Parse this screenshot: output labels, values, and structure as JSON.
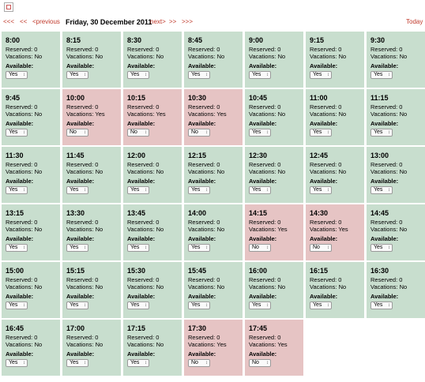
{
  "nav": {
    "first": "<<<",
    "prev_short": "<<",
    "previous": "<previous",
    "date": "Friday, 30 December 2011",
    "next": "next>",
    "next_short": ">>",
    "last": ">>>",
    "today": "Today"
  },
  "labels": {
    "reserved_prefix": "Reserved: ",
    "vacations_prefix": "Vacations: ",
    "available": "Available:"
  },
  "slots": [
    {
      "time": "8:00",
      "reserved": "0",
      "vacations": "No",
      "available": "Yes"
    },
    {
      "time": "8:15",
      "reserved": "0",
      "vacations": "No",
      "available": "Yes"
    },
    {
      "time": "8:30",
      "reserved": "0",
      "vacations": "No",
      "available": "Yes"
    },
    {
      "time": "8:45",
      "reserved": "0",
      "vacations": "No",
      "available": "Yes"
    },
    {
      "time": "9:00",
      "reserved": "0",
      "vacations": "No",
      "available": "Yes"
    },
    {
      "time": "9:15",
      "reserved": "0",
      "vacations": "No",
      "available": "Yes"
    },
    {
      "time": "9:30",
      "reserved": "0",
      "vacations": "No",
      "available": "Yes"
    },
    {
      "time": "9:45",
      "reserved": "0",
      "vacations": "No",
      "available": "Yes"
    },
    {
      "time": "10:00",
      "reserved": "0",
      "vacations": "Yes",
      "available": "No"
    },
    {
      "time": "10:15",
      "reserved": "0",
      "vacations": "Yes",
      "available": "No"
    },
    {
      "time": "10:30",
      "reserved": "0",
      "vacations": "Yes",
      "available": "No"
    },
    {
      "time": "10:45",
      "reserved": "0",
      "vacations": "No",
      "available": "Yes"
    },
    {
      "time": "11:00",
      "reserved": "0",
      "vacations": "No",
      "available": "Yes"
    },
    {
      "time": "11:15",
      "reserved": "0",
      "vacations": "No",
      "available": "Yes"
    },
    {
      "time": "11:30",
      "reserved": "0",
      "vacations": "No",
      "available": "Yes"
    },
    {
      "time": "11:45",
      "reserved": "0",
      "vacations": "No",
      "available": "Yes"
    },
    {
      "time": "12:00",
      "reserved": "0",
      "vacations": "No",
      "available": "Yes"
    },
    {
      "time": "12:15",
      "reserved": "0",
      "vacations": "No",
      "available": "Yes"
    },
    {
      "time": "12:30",
      "reserved": "0",
      "vacations": "No",
      "available": "Yes"
    },
    {
      "time": "12:45",
      "reserved": "0",
      "vacations": "No",
      "available": "Yes"
    },
    {
      "time": "13:00",
      "reserved": "0",
      "vacations": "No",
      "available": "Yes"
    },
    {
      "time": "13:15",
      "reserved": "0",
      "vacations": "No",
      "available": "Yes"
    },
    {
      "time": "13:30",
      "reserved": "0",
      "vacations": "No",
      "available": "Yes"
    },
    {
      "time": "13:45",
      "reserved": "0",
      "vacations": "No",
      "available": "Yes"
    },
    {
      "time": "14:00",
      "reserved": "0",
      "vacations": "No",
      "available": "Yes"
    },
    {
      "time": "14:15",
      "reserved": "0",
      "vacations": "Yes",
      "available": "No"
    },
    {
      "time": "14:30",
      "reserved": "0",
      "vacations": "Yes",
      "available": "No"
    },
    {
      "time": "14:45",
      "reserved": "0",
      "vacations": "No",
      "available": "Yes"
    },
    {
      "time": "15:00",
      "reserved": "0",
      "vacations": "No",
      "available": "Yes"
    },
    {
      "time": "15:15",
      "reserved": "0",
      "vacations": "No",
      "available": "Yes"
    },
    {
      "time": "15:30",
      "reserved": "0",
      "vacations": "No",
      "available": "Yes"
    },
    {
      "time": "15:45",
      "reserved": "0",
      "vacations": "No",
      "available": "Yes"
    },
    {
      "time": "16:00",
      "reserved": "0",
      "vacations": "No",
      "available": "Yes"
    },
    {
      "time": "16:15",
      "reserved": "0",
      "vacations": "No",
      "available": "Yes"
    },
    {
      "time": "16:30",
      "reserved": "0",
      "vacations": "No",
      "available": "Yes"
    },
    {
      "time": "16:45",
      "reserved": "0",
      "vacations": "No",
      "available": "Yes"
    },
    {
      "time": "17:00",
      "reserved": "0",
      "vacations": "No",
      "available": "Yes"
    },
    {
      "time": "17:15",
      "reserved": "0",
      "vacations": "No",
      "available": "Yes"
    },
    {
      "time": "17:30",
      "reserved": "0",
      "vacations": "Yes",
      "available": "No"
    },
    {
      "time": "17:45",
      "reserved": "0",
      "vacations": "Yes",
      "available": "No"
    }
  ]
}
